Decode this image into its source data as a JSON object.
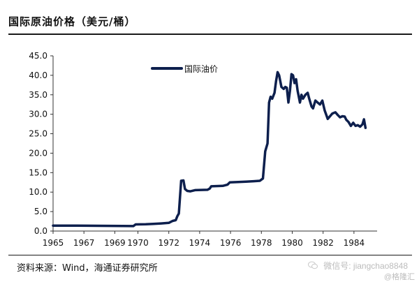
{
  "title": "国际原油价格（美元/桶）",
  "source": "资料来源：Wind，海通证券研究所",
  "watermark": {
    "account": "微信号: jiangchao8848",
    "brand": "@格隆汇"
  },
  "chart_data": {
    "type": "line",
    "title": "国际原油价格（美元/桶）",
    "legend": {
      "entries": [
        "国际油价"
      ],
      "placement": "top-left"
    },
    "grid": false,
    "ylim": [
      0,
      45
    ],
    "xlim": [
      1965,
      1986
    ],
    "y_ticks": [
      "0.0",
      "5.0",
      "10.0",
      "15.0",
      "20.0",
      "25.0",
      "30.0",
      "35.0",
      "40.0",
      "45.0"
    ],
    "y_tick_values": [
      0,
      5,
      10,
      15,
      20,
      25,
      30,
      35,
      40,
      45
    ],
    "x_ticks": [
      "1965",
      "1967",
      "1969",
      "1970",
      "1972",
      "1974",
      "1976",
      "1978",
      "1980",
      "1982",
      "1984"
    ],
    "x_tick_values": [
      1965,
      1967,
      1969,
      1970.5,
      1972.5,
      1974.5,
      1976.5,
      1978.5,
      1980.5,
      1982.5,
      1984.5
    ],
    "series": [
      {
        "name": "国际油价",
        "color": "#0d1f4d",
        "points": [
          [
            1965.0,
            1.4
          ],
          [
            1966.5,
            1.38
          ],
          [
            1968.0,
            1.35
          ],
          [
            1969.5,
            1.3
          ],
          [
            1970.2,
            1.28
          ],
          [
            1970.35,
            1.7
          ],
          [
            1971.0,
            1.75
          ],
          [
            1971.5,
            1.85
          ],
          [
            1972.0,
            1.95
          ],
          [
            1972.5,
            2.1
          ],
          [
            1972.75,
            2.6
          ],
          [
            1972.95,
            2.8
          ],
          [
            1973.05,
            3.8
          ],
          [
            1973.15,
            4.5
          ],
          [
            1973.3,
            12.9
          ],
          [
            1973.45,
            13.0
          ],
          [
            1973.55,
            10.8
          ],
          [
            1973.7,
            10.3
          ],
          [
            1973.9,
            10.2
          ],
          [
            1974.2,
            10.5
          ],
          [
            1975.0,
            10.6
          ],
          [
            1975.15,
            10.9
          ],
          [
            1975.25,
            11.5
          ],
          [
            1976.0,
            11.6
          ],
          [
            1976.3,
            11.9
          ],
          [
            1976.45,
            12.5
          ],
          [
            1977.0,
            12.6
          ],
          [
            1977.5,
            12.7
          ],
          [
            1978.0,
            12.8
          ],
          [
            1978.4,
            12.9
          ],
          [
            1978.6,
            13.5
          ],
          [
            1978.75,
            20.5
          ],
          [
            1978.9,
            22.5
          ],
          [
            1979.0,
            33.0
          ],
          [
            1979.1,
            34.5
          ],
          [
            1979.2,
            34.0
          ],
          [
            1979.35,
            35.5
          ],
          [
            1979.45,
            38.5
          ],
          [
            1979.55,
            40.8
          ],
          [
            1979.65,
            40.0
          ],
          [
            1979.8,
            37.0
          ],
          [
            1979.95,
            36.5
          ],
          [
            1980.05,
            37.0
          ],
          [
            1980.15,
            36.8
          ],
          [
            1980.25,
            33.0
          ],
          [
            1980.35,
            36.0
          ],
          [
            1980.45,
            40.3
          ],
          [
            1980.55,
            40.0
          ],
          [
            1980.65,
            38.0
          ],
          [
            1980.75,
            39.0
          ],
          [
            1980.85,
            36.0
          ],
          [
            1981.0,
            33.0
          ],
          [
            1981.1,
            35.0
          ],
          [
            1981.2,
            34.0
          ],
          [
            1981.35,
            35.0
          ],
          [
            1981.5,
            35.5
          ],
          [
            1981.6,
            34.0
          ],
          [
            1981.75,
            32.0
          ],
          [
            1981.85,
            31.5
          ],
          [
            1982.0,
            33.5
          ],
          [
            1982.15,
            33.0
          ],
          [
            1982.3,
            32.5
          ],
          [
            1982.45,
            33.5
          ],
          [
            1982.6,
            31.0
          ],
          [
            1982.8,
            28.8
          ],
          [
            1982.95,
            29.5
          ],
          [
            1983.1,
            30.2
          ],
          [
            1983.3,
            30.5
          ],
          [
            1983.45,
            29.8
          ],
          [
            1983.6,
            29.2
          ],
          [
            1983.75,
            29.5
          ],
          [
            1983.9,
            29.4
          ],
          [
            1984.0,
            28.6
          ],
          [
            1984.15,
            28.0
          ],
          [
            1984.3,
            27.0
          ],
          [
            1984.45,
            27.8
          ],
          [
            1984.6,
            27.0
          ],
          [
            1984.75,
            27.2
          ],
          [
            1984.9,
            26.8
          ],
          [
            1985.05,
            27.4
          ],
          [
            1985.15,
            28.7
          ],
          [
            1985.25,
            26.5
          ]
        ]
      }
    ]
  }
}
